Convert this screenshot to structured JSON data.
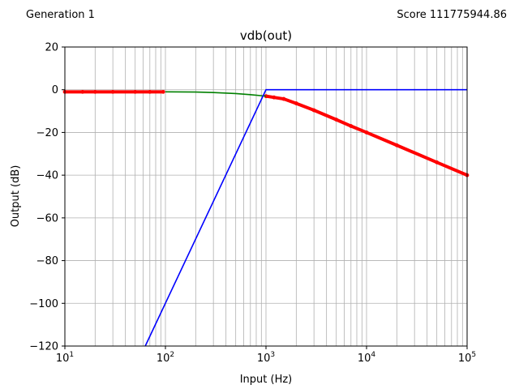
{
  "header": {
    "generation_label": "Generation 1",
    "score_label": "Score 111775944.86"
  },
  "chart_data": {
    "type": "line",
    "title": "vdb(out)",
    "xlabel": "Input (Hz)",
    "ylabel": "Output (dB)",
    "xscale": "log",
    "xlim": [
      10,
      100000
    ],
    "ylim": [
      -120,
      20
    ],
    "grid": true,
    "x_ticks": [
      {
        "value": 10,
        "base": "10",
        "exp": "1"
      },
      {
        "value": 100,
        "base": "10",
        "exp": "2"
      },
      {
        "value": 1000,
        "base": "10",
        "exp": "3"
      },
      {
        "value": 10000,
        "base": "10",
        "exp": "4"
      },
      {
        "value": 100000,
        "base": "10",
        "exp": "5"
      }
    ],
    "y_ticks": [
      {
        "value": 20,
        "label": "20"
      },
      {
        "value": 0,
        "label": "0"
      },
      {
        "value": -20,
        "label": "−20"
      },
      {
        "value": -40,
        "label": "−40"
      },
      {
        "value": -60,
        "label": "−60"
      },
      {
        "value": -80,
        "label": "−80"
      },
      {
        "value": -100,
        "label": "−100"
      },
      {
        "value": -120,
        "label": "−120"
      }
    ],
    "series": [
      {
        "color": "#ff0000",
        "style": "markers",
        "points": [
          [
            10,
            -1
          ],
          [
            15,
            -1
          ],
          [
            20,
            -1
          ],
          [
            30,
            -1
          ],
          [
            50,
            -1
          ],
          [
            70,
            -1
          ],
          [
            95,
            -1
          ],
          [
            1000,
            -3
          ],
          [
            1200,
            -3.6
          ],
          [
            1500,
            -4.3
          ],
          [
            2000,
            -6.4
          ],
          [
            3000,
            -9.6
          ],
          [
            5000,
            -14
          ],
          [
            7000,
            -17
          ],
          [
            10000,
            -20
          ],
          [
            20000,
            -26
          ],
          [
            50000,
            -34
          ],
          [
            100000,
            -40
          ]
        ]
      },
      {
        "color": "#008000",
        "style": "line",
        "points": [
          [
            100,
            -1
          ],
          [
            200,
            -1.1
          ],
          [
            300,
            -1.3
          ],
          [
            500,
            -1.8
          ],
          [
            700,
            -2.3
          ],
          [
            1000,
            -3
          ]
        ]
      },
      {
        "color": "#0000ff",
        "style": "line",
        "points": [
          [
            63,
            -120
          ],
          [
            1000,
            0
          ],
          [
            100000,
            0
          ]
        ]
      }
    ]
  }
}
